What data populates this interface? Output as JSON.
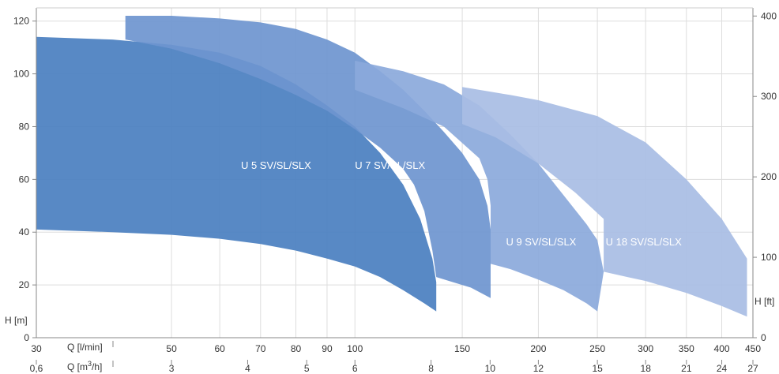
{
  "chart_data": {
    "type": "area",
    "title": "",
    "xlabel_top": "Q [l/min]",
    "xlabel_bottom": "Q [m3/h]",
    "ylabel_left": "H [m]",
    "ylabel_right": "H [ft]",
    "xscale": "log",
    "xlim_lpm": [
      30,
      450
    ],
    "ylim_m": [
      0,
      125
    ],
    "grid": true,
    "x_ticks_lpm": [
      30,
      50,
      60,
      70,
      80,
      90,
      100,
      150,
      200,
      250,
      300,
      350,
      400,
      450
    ],
    "x_ticks_m3h": [
      "0,6",
      "3",
      "4",
      "5",
      "6",
      "8",
      "10",
      "12",
      "15",
      "18",
      "21",
      "24",
      "27"
    ],
    "y_ticks_m": [
      0,
      20,
      40,
      60,
      80,
      100,
      120
    ],
    "y_ticks_ft": [
      0,
      100,
      200,
      300,
      400
    ],
    "series": [
      {
        "name": "U 5 SV/SL/SLX",
        "color": "#4a7fc0",
        "upper": [
          [
            30,
            114
          ],
          [
            40,
            113
          ],
          [
            50,
            111
          ],
          [
            60,
            108
          ],
          [
            70,
            103
          ],
          [
            80,
            96
          ],
          [
            90,
            88
          ],
          [
            100,
            80
          ],
          [
            110,
            70
          ],
          [
            120,
            58
          ],
          [
            128,
            45
          ],
          [
            134,
            30
          ],
          [
            136,
            21
          ]
        ],
        "lower": [
          [
            30,
            41
          ],
          [
            40,
            40
          ],
          [
            50,
            39
          ],
          [
            60,
            37.5
          ],
          [
            70,
            35.5
          ],
          [
            80,
            33
          ],
          [
            90,
            30
          ],
          [
            100,
            27
          ],
          [
            110,
            23
          ],
          [
            120,
            18
          ],
          [
            130,
            13
          ],
          [
            136,
            10
          ]
        ]
      },
      {
        "name": "U 7 SV/SL/SLX",
        "color": "#6e95cf",
        "upper": [
          [
            42,
            122
          ],
          [
            50,
            122
          ],
          [
            60,
            121
          ],
          [
            70,
            119.5
          ],
          [
            80,
            117
          ],
          [
            90,
            113
          ],
          [
            100,
            108
          ],
          [
            110,
            101
          ],
          [
            120,
            94
          ],
          [
            130,
            86
          ],
          [
            140,
            78
          ],
          [
            150,
            70
          ],
          [
            160,
            60
          ],
          [
            165,
            50
          ],
          [
            167,
            41
          ],
          [
            167,
            19
          ]
        ],
        "lower": [
          [
            42,
            113
          ],
          [
            50,
            109.5
          ],
          [
            60,
            104
          ],
          [
            70,
            98
          ],
          [
            80,
            92
          ],
          [
            90,
            86
          ],
          [
            100,
            79
          ],
          [
            110,
            72
          ],
          [
            120,
            64
          ],
          [
            125,
            58
          ],
          [
            130,
            48
          ],
          [
            134,
            33
          ],
          [
            136,
            23
          ],
          [
            145,
            21
          ],
          [
            155,
            19
          ],
          [
            167,
            15
          ]
        ]
      },
      {
        "name": "U 9 SV/SL/SLX",
        "color": "#8ba9db",
        "upper": [
          [
            100,
            105
          ],
          [
            120,
            101
          ],
          [
            140,
            96
          ],
          [
            160,
            88
          ],
          [
            180,
            77
          ],
          [
            200,
            66
          ],
          [
            220,
            54
          ],
          [
            240,
            43
          ],
          [
            250,
            37
          ],
          [
            256,
            25
          ]
        ],
        "lower": [
          [
            100,
            94
          ],
          [
            120,
            87
          ],
          [
            140,
            80
          ],
          [
            160,
            68
          ],
          [
            165,
            60
          ],
          [
            167,
            50
          ],
          [
            167,
            28
          ],
          [
            180,
            26
          ],
          [
            200,
            22
          ],
          [
            220,
            18
          ],
          [
            240,
            13
          ],
          [
            250,
            10
          ]
        ]
      },
      {
        "name": "U 18 SV/SL/SLX",
        "color": "#a8bde4",
        "upper": [
          [
            150,
            95
          ],
          [
            180,
            92
          ],
          [
            200,
            90
          ],
          [
            250,
            84
          ],
          [
            300,
            74
          ],
          [
            350,
            60
          ],
          [
            400,
            45
          ],
          [
            440,
            30
          ]
        ],
        "lower": [
          [
            150,
            81
          ],
          [
            170,
            76
          ],
          [
            200,
            66
          ],
          [
            230,
            55
          ],
          [
            256,
            45
          ],
          [
            256,
            25
          ],
          [
            280,
            23
          ],
          [
            300,
            21.5
          ],
          [
            350,
            17
          ],
          [
            400,
            12
          ],
          [
            440,
            8
          ]
        ]
      }
    ],
    "annotations": [
      {
        "text": "U 5 SV/SL/SLX",
        "at": [
          65,
          64
        ]
      },
      {
        "text": "U 7 SV/SL/SLX",
        "at": [
          100,
          64
        ]
      },
      {
        "text": "U 9 SV/SL/SLX",
        "at": [
          177,
          35
        ]
      },
      {
        "text": "U 18 SV/SL/SLX",
        "at": [
          258,
          35
        ]
      }
    ]
  }
}
